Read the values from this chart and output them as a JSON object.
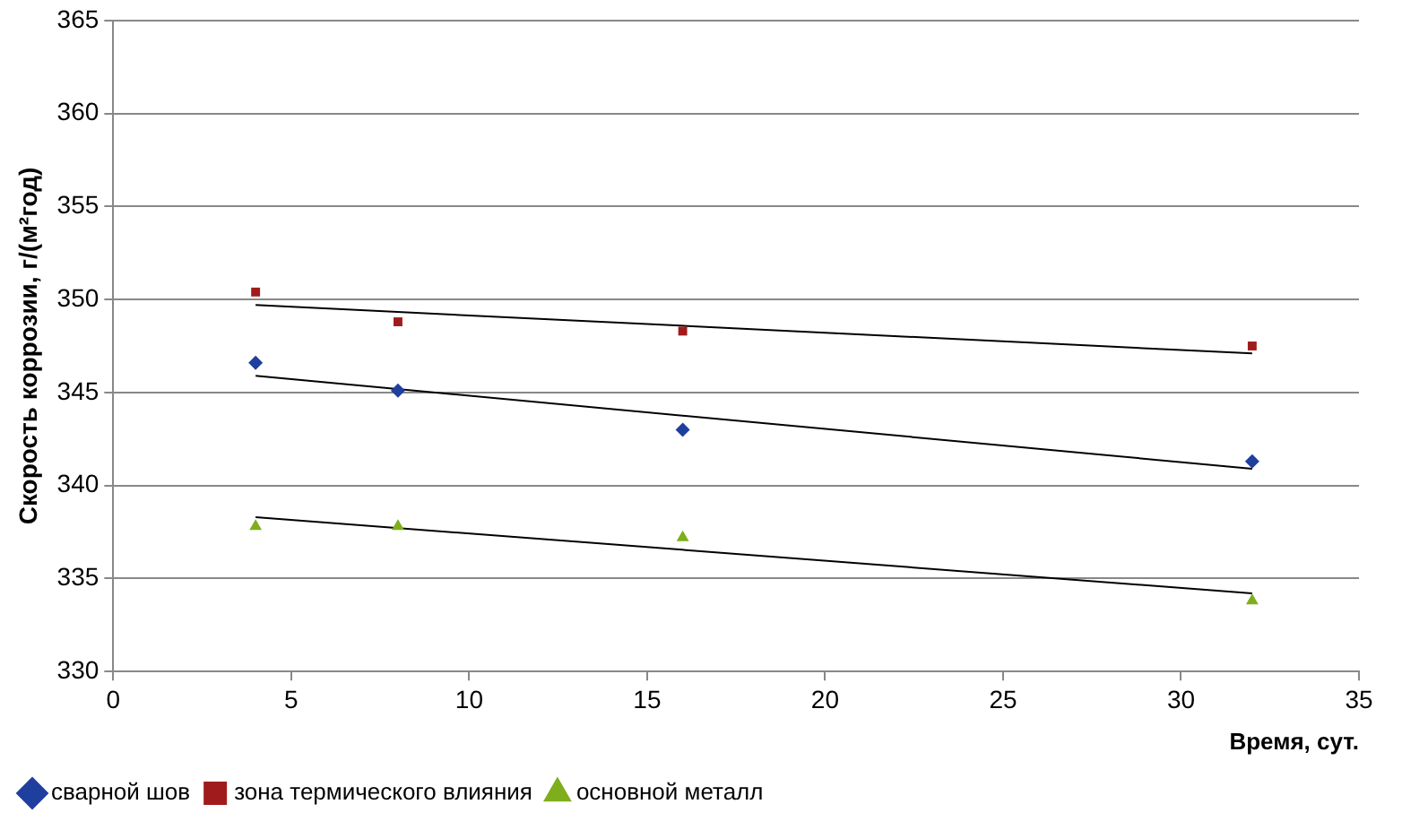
{
  "chart_data": {
    "type": "scatter",
    "xlabel": "Время, сут.",
    "ylabel": "Скорость коррозии, г/(м²год)",
    "xlim": [
      0,
      35
    ],
    "xticks": [
      0,
      5,
      10,
      15,
      20,
      25,
      30,
      35
    ],
    "ylim": [
      330,
      365
    ],
    "yticks": [
      330,
      335,
      340,
      345,
      350,
      355,
      360,
      365
    ],
    "grid": "y",
    "legend": "bottom left",
    "series": [
      {
        "name": "сварной шов",
        "color": "#1f3f9f",
        "marker": "diamond",
        "x": [
          4,
          8,
          16,
          32
        ],
        "values": [
          346.6,
          345.1,
          343.0,
          341.3
        ]
      },
      {
        "name": "зона термического влияния",
        "color": "#a01c1c",
        "marker": "square",
        "x": [
          4,
          8,
          16,
          32
        ],
        "values": [
          350.4,
          348.8,
          348.3,
          347.5
        ]
      },
      {
        "name": "основной металл",
        "color": "#7fae1c",
        "marker": "triangle",
        "x": [
          4,
          8,
          16,
          32
        ],
        "values": [
          337.8,
          337.8,
          337.2,
          333.8
        ]
      },
      {
        "type": "line",
        "color": "#000000",
        "marker": "none",
        "x": [
          4,
          32
        ],
        "values": [
          345.9,
          340.9
        ]
      },
      {
        "type": "line",
        "color": "#000000",
        "marker": "none",
        "x": [
          4,
          32
        ],
        "values": [
          349.7,
          347.1
        ]
      },
      {
        "type": "line",
        "color": "#000000",
        "marker": "none",
        "x": [
          4,
          32
        ],
        "values": [
          338.3,
          334.2
        ]
      }
    ]
  }
}
